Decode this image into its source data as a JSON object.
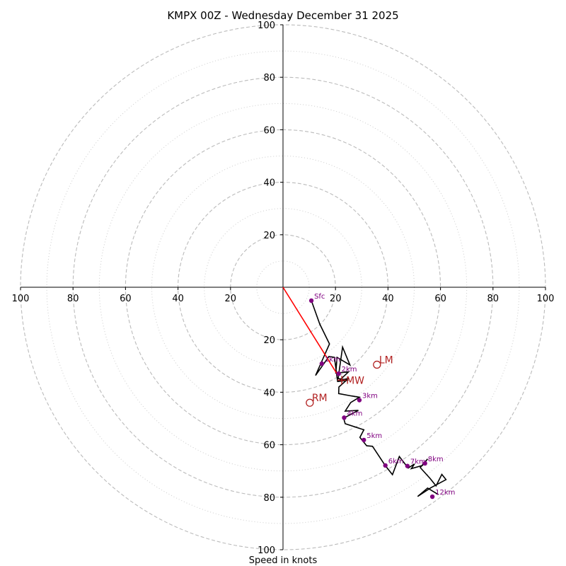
{
  "chart_data": {
    "type": "line",
    "title": "KMPX 00Z - Wednesday December 31 2025",
    "xlabel": "Speed in knots",
    "ylabel": "",
    "xlim": [
      -100,
      100
    ],
    "ylim": [
      -100,
      100
    ],
    "rings_major": [
      20,
      40,
      60,
      80,
      100
    ],
    "rings_minor": [
      10,
      30,
      50,
      70,
      90
    ],
    "x_ticks": [
      {
        "value": -100,
        "label": "100"
      },
      {
        "value": -80,
        "label": "80"
      },
      {
        "value": -60,
        "label": "60"
      },
      {
        "value": -40,
        "label": "40"
      },
      {
        "value": -20,
        "label": "20"
      },
      {
        "value": 20,
        "label": "20"
      },
      {
        "value": 40,
        "label": "40"
      },
      {
        "value": 60,
        "label": "60"
      },
      {
        "value": 80,
        "label": "80"
      },
      {
        "value": 100,
        "label": "100"
      }
    ],
    "y_ticks": [
      {
        "value": 100,
        "label": "100"
      },
      {
        "value": 80,
        "label": "80"
      },
      {
        "value": 60,
        "label": "60"
      },
      {
        "value": 40,
        "label": "40"
      },
      {
        "value": 20,
        "label": "20"
      },
      {
        "value": -20,
        "label": "20"
      },
      {
        "value": -40,
        "label": "40"
      },
      {
        "value": -60,
        "label": "60"
      },
      {
        "value": -80,
        "label": "80"
      },
      {
        "value": -100,
        "label": "100"
      }
    ],
    "hodograph": {
      "name": "hodograph",
      "color": "#000000",
      "points": [
        [
          10.8,
          -5.1
        ],
        [
          14.0,
          -14.0
        ],
        [
          17.7,
          -21.6
        ],
        [
          12.4,
          -33.6
        ],
        [
          17.5,
          -26.4
        ],
        [
          19.6,
          -26.7
        ],
        [
          20.8,
          -35.9
        ],
        [
          24.9,
          -35.4
        ],
        [
          21.0,
          -34.8
        ],
        [
          22.7,
          -22.8
        ],
        [
          25.5,
          -29.6
        ],
        [
          20.6,
          -26.7
        ],
        [
          20.1,
          -32.7
        ],
        [
          24.9,
          -32.3
        ],
        [
          21.4,
          -35.6
        ],
        [
          25.0,
          -34.7
        ],
        [
          21.3,
          -38.0
        ],
        [
          21.2,
          -40.5
        ],
        [
          26.0,
          -41.4
        ],
        [
          29.1,
          -41.9
        ],
        [
          25.8,
          -43.9
        ],
        [
          23.7,
          -47.2
        ],
        [
          28.7,
          -46.9
        ],
        [
          23.1,
          -49.9
        ],
        [
          23.7,
          -52.0
        ],
        [
          30.8,
          -54.3
        ],
        [
          29.3,
          -57.2
        ],
        [
          31.9,
          -60.4
        ],
        [
          34.1,
          -60.6
        ],
        [
          39.0,
          -68.0
        ],
        [
          41.7,
          -71.4
        ],
        [
          44.3,
          -64.5
        ],
        [
          47.7,
          -68.9
        ],
        [
          50.1,
          -67.3
        ],
        [
          48.9,
          -69.1
        ],
        [
          53.1,
          -67.9
        ],
        [
          55.1,
          -65.4
        ],
        [
          52.3,
          -68.7
        ],
        [
          56.0,
          -72.8
        ],
        [
          58.3,
          -75.7
        ],
        [
          60.5,
          -71.3
        ],
        [
          62.1,
          -73.3
        ],
        [
          56.3,
          -76.4
        ],
        [
          51.3,
          -79.7
        ],
        [
          55.1,
          -76.5
        ],
        [
          59.2,
          -79.0
        ]
      ]
    },
    "height_markers": [
      {
        "label": "Sfc",
        "x": 10.8,
        "y": -5.1
      },
      {
        "label": "1km",
        "x": 14.8,
        "y": -29.1
      },
      {
        "label": "2km",
        "x": 21.2,
        "y": -32.9
      },
      {
        "label": "3km",
        "x": 29.1,
        "y": -43.0
      },
      {
        "label": "4km",
        "x": 23.3,
        "y": -49.7
      },
      {
        "label": "5km",
        "x": 30.8,
        "y": -58.2
      },
      {
        "label": "6km",
        "x": 39.0,
        "y": -67.9
      },
      {
        "label": "7km",
        "x": 47.4,
        "y": -68.1
      },
      {
        "label": "8km",
        "x": 54.1,
        "y": -67.1
      },
      {
        "label": "12km",
        "x": 56.9,
        "y": -79.8
      }
    ],
    "storm_motion_line": {
      "color": "#ff0000",
      "from": [
        0,
        0
      ],
      "to": [
        20.9,
        -33.5
      ]
    },
    "motion_markers": [
      {
        "label": "LM",
        "x": 35.8,
        "y": -29.5
      },
      {
        "label": "RM",
        "x": 10.2,
        "y": -44.0
      },
      {
        "label": "MW",
        "x": 22.4,
        "y": -35.4
      }
    ]
  },
  "colors": {
    "hodograph": "#000000",
    "markers": "#800080",
    "storm_motion": "#ff0000",
    "motion_labels": "#b22222",
    "grid": "#bbbbbb"
  }
}
